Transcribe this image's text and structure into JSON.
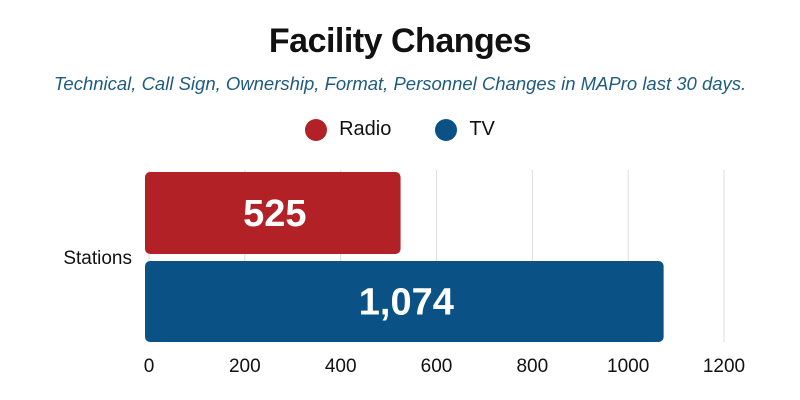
{
  "chart_data": {
    "type": "bar",
    "orientation": "horizontal",
    "title": "Facility Changes",
    "subtitle": "Technical, Call Sign, Ownership, Format, Personnel Changes in MAPro last 30 days.",
    "categories": [
      "Stations"
    ],
    "series": [
      {
        "name": "Radio",
        "values": [
          525
        ],
        "labels": [
          "525"
        ],
        "color": "#b22126"
      },
      {
        "name": "TV",
        "values": [
          1074
        ],
        "labels": [
          "1,074"
        ],
        "color": "#0a5286"
      }
    ],
    "xlim": [
      0,
      1200
    ],
    "xticks": [
      0,
      200,
      400,
      600,
      800,
      1000,
      1200
    ],
    "xtick_labels": [
      "0",
      "200",
      "400",
      "600",
      "800",
      "1000",
      "1200"
    ],
    "grid": true,
    "legend_position": "top-center"
  }
}
